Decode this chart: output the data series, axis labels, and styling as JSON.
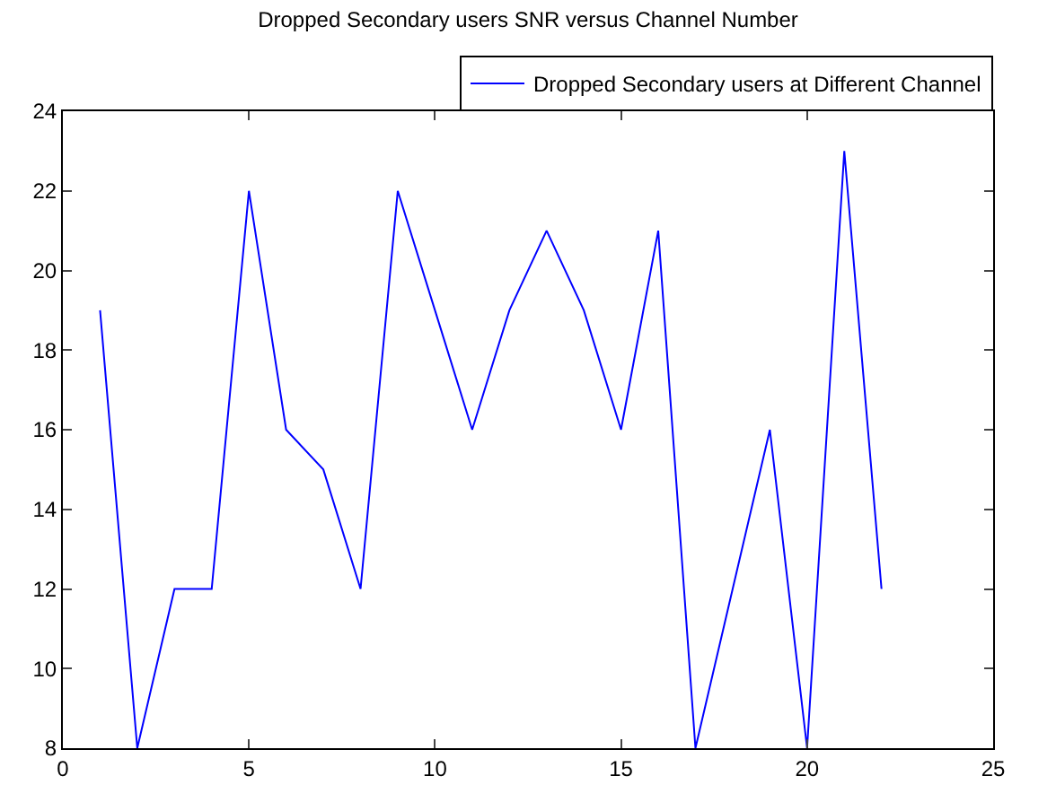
{
  "chart_data": {
    "type": "line",
    "title": "Dropped Secondary users SNR versus Channel Number",
    "x": [
      1,
      2,
      3,
      4,
      5,
      6,
      7,
      8,
      9,
      10,
      11,
      12,
      13,
      14,
      15,
      16,
      17,
      18,
      19,
      20,
      21,
      22
    ],
    "series": [
      {
        "name": "Dropped Secondary users at Different Channel",
        "color": "#0000ff",
        "values": [
          19,
          8,
          12,
          12,
          22,
          16,
          15,
          12,
          22,
          19,
          16,
          19,
          21,
          19,
          16,
          21,
          8,
          12,
          16,
          8,
          23,
          12
        ]
      }
    ],
    "xlim": [
      0,
      25
    ],
    "xticks": [
      0,
      5,
      10,
      15,
      20,
      25
    ],
    "ylim": [
      8,
      24
    ],
    "yticks": [
      8,
      10,
      12,
      14,
      16,
      18,
      20,
      22,
      24
    ],
    "legend": "top right",
    "marker": "none",
    "line_style": "solid"
  }
}
